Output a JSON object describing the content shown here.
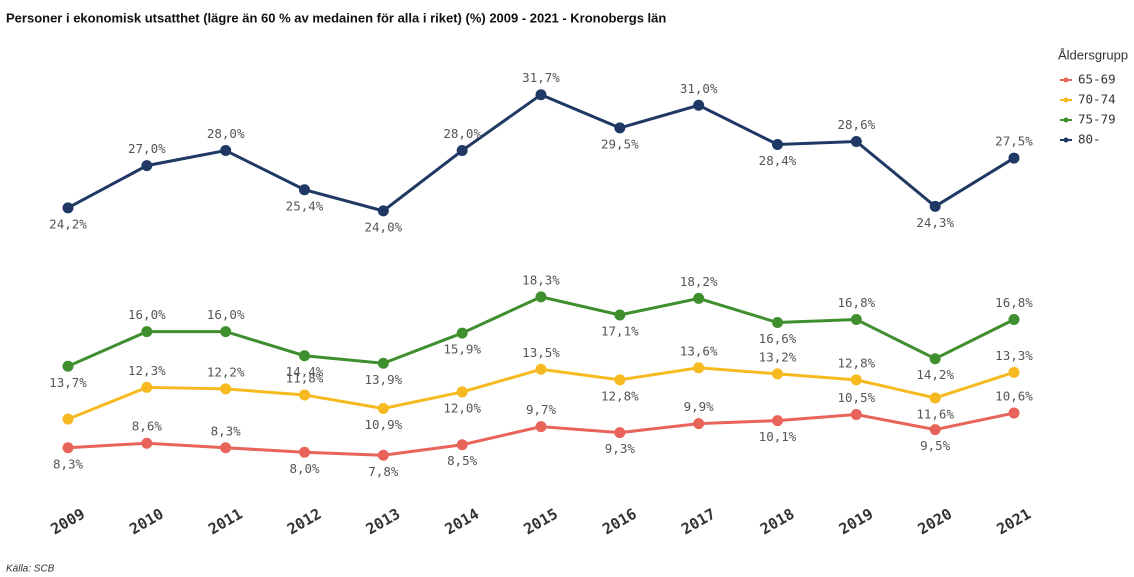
{
  "chart_data": {
    "type": "line",
    "title": "Personer i ekonomisk utsatthet (lägre än 60 % av medainen för alla i riket) (%) 2009 - 2021 - Kronobergs län",
    "source": "Källa: SCB",
    "legend_title": "Åldersgrupp",
    "legend": "right",
    "categories": [
      "2009",
      "2010",
      "2011",
      "2012",
      "2013",
      "2014",
      "2015",
      "2016",
      "2017",
      "2018",
      "2019",
      "2020",
      "2021"
    ],
    "ylim": [
      5.5,
      34
    ],
    "series": [
      {
        "name": "65-69",
        "color": "#e8645a",
        "values": [
          8.3,
          8.6,
          8.3,
          8.0,
          7.8,
          8.5,
          9.7,
          9.3,
          9.9,
          10.1,
          10.5,
          9.5,
          10.6
        ],
        "value_labels": [
          "8,3%",
          "8,6%",
          "8,3%",
          "8,0%",
          "7,8%",
          "8,5%",
          "9,7%",
          "9,3%",
          "9,9%",
          "10,1%",
          "10,5%",
          "9,5%",
          "10,6%"
        ]
      },
      {
        "name": "70-74",
        "color": "#f6b91f",
        "values": [
          10.2,
          12.3,
          12.2,
          11.8,
          10.9,
          12.0,
          13.5,
          12.8,
          13.6,
          13.2,
          12.8,
          11.6,
          13.3
        ],
        "value_labels": [
          null,
          "12,3%",
          "12,2%",
          "11,8%",
          "10,9%",
          "12,0%",
          "13,5%",
          "12,8%",
          "13,6%",
          "13,2%",
          "12,8%",
          "11,6%",
          "13,3%"
        ]
      },
      {
        "name": "75-79",
        "color": "#3f8f2f",
        "values": [
          13.7,
          16.0,
          16.0,
          14.4,
          13.9,
          15.9,
          18.3,
          17.1,
          18.2,
          16.6,
          16.8,
          14.2,
          16.8
        ],
        "value_labels": [
          "13,7%",
          "16,0%",
          "16,0%",
          "14,4%",
          "13,9%",
          "15,9%",
          "18,3%",
          "17,1%",
          "18,2%",
          "16,6%",
          "16,8%",
          "14,2%",
          "16,8%"
        ]
      },
      {
        "name": "80-",
        "color": "#1f3864",
        "values": [
          24.2,
          27.0,
          28.0,
          25.4,
          24.0,
          28.0,
          31.7,
          29.5,
          31.0,
          28.4,
          28.6,
          24.3,
          27.5
        ],
        "value_labels": [
          "24,2%",
          "27,0%",
          "28,0%",
          "25,4%",
          "24,0%",
          "28,0%",
          "31,7%",
          "29,5%",
          "31,0%",
          "28,4%",
          "28,6%",
          "24,3%",
          "27,5%"
        ]
      }
    ]
  }
}
